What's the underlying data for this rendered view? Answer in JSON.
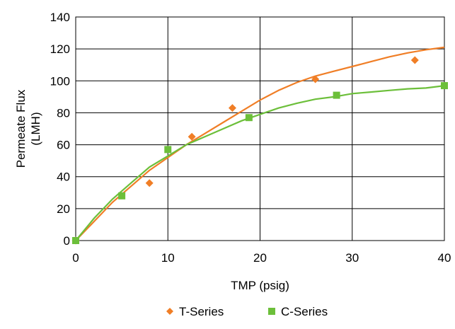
{
  "chart_data": {
    "type": "scatter",
    "title": "",
    "xlabel": "TMP (psig)",
    "ylabel_lines": [
      "Permeate Flux",
      "(LMH)"
    ],
    "xlim": [
      0,
      40
    ],
    "ylim": [
      0,
      140
    ],
    "xticks": [
      0,
      10,
      20,
      30,
      40
    ],
    "yticks": [
      0,
      20,
      40,
      60,
      80,
      100,
      120,
      140
    ],
    "grid": true,
    "legend_position": "bottom",
    "series": [
      {
        "name": "T-Series",
        "marker": "diamond",
        "color": "#f07e26",
        "points": [
          [
            0,
            0
          ],
          [
            8,
            36
          ],
          [
            12.6,
            65
          ],
          [
            17,
            83
          ],
          [
            26,
            101
          ],
          [
            36.8,
            113
          ]
        ],
        "trendline": [
          [
            0,
            0
          ],
          [
            2,
            12
          ],
          [
            4,
            24
          ],
          [
            6,
            34
          ],
          [
            8,
            44
          ],
          [
            10,
            52
          ],
          [
            12,
            60
          ],
          [
            14,
            67
          ],
          [
            16,
            74
          ],
          [
            18,
            81
          ],
          [
            20,
            88
          ],
          [
            22,
            94
          ],
          [
            24,
            99
          ],
          [
            26,
            103
          ],
          [
            28,
            106
          ],
          [
            30,
            109
          ],
          [
            32,
            112
          ],
          [
            34,
            115
          ],
          [
            36,
            117.5
          ],
          [
            38,
            119.5
          ],
          [
            40,
            121
          ]
        ]
      },
      {
        "name": "C-Series",
        "marker": "square",
        "color": "#6cbf3a",
        "points": [
          [
            0,
            0
          ],
          [
            5,
            28
          ],
          [
            10,
            57
          ],
          [
            18.8,
            77
          ],
          [
            28.3,
            91
          ],
          [
            40,
            97
          ]
        ],
        "trendline": [
          [
            0,
            0
          ],
          [
            2,
            14
          ],
          [
            4,
            26
          ],
          [
            6,
            36
          ],
          [
            8,
            46
          ],
          [
            10,
            53
          ],
          [
            12,
            60
          ],
          [
            14,
            65
          ],
          [
            16,
            70
          ],
          [
            18,
            75
          ],
          [
            20,
            79
          ],
          [
            22,
            83
          ],
          [
            24,
            86
          ],
          [
            26,
            88.5
          ],
          [
            28,
            90
          ],
          [
            30,
            92
          ],
          [
            32,
            93
          ],
          [
            34,
            94
          ],
          [
            36,
            95
          ],
          [
            38,
            95.5
          ],
          [
            40,
            97
          ]
        ]
      }
    ]
  }
}
